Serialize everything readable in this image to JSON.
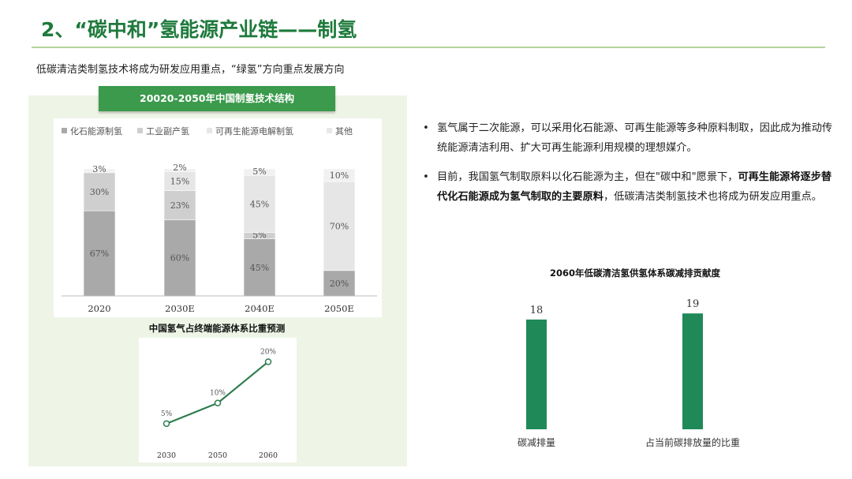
{
  "header": {
    "title": "2、“碳中和”氢能源产业链——制氢",
    "subtitle": "低碳清洁类制氢技术将成为研发应用重点，“绿氢”方向重点发展方向"
  },
  "left_card": {
    "title": "20020-2050年中国制氢技术结构"
  },
  "chart2_title": "中国氢气占终端能源体系比重预测",
  "chart3_title": "2060年低碳清洁氢供氢体系碳减排贡献度",
  "bullets": [
    {
      "dot": "•",
      "text": "氢气属于二次能源，可以采用化石能源、可再生能源等多种原料制取，因此成为推动传统能源清洁利用、扩大可再生能源利用规模的理想媒介。"
    },
    {
      "dot": "•",
      "pre": "目前，我国氢气制取原料以化石能源为主，但在\"碳中和\"愿景下，",
      "bold": "可再生能源将逐步替代化石能源成为氢气制取的主要原料",
      "post": "，低碳清洁类制氢技术也将成为研发应用重点。"
    }
  ],
  "chart_data": [
    {
      "type": "bar",
      "stacked": true,
      "title": "20020-2050年中国制氢技术结构",
      "categories": [
        "2020",
        "2030E",
        "2040E",
        "2050E"
      ],
      "series": [
        {
          "name": "化石能源制氢",
          "values": [
            67,
            60,
            45,
            20
          ],
          "labels": [
            "67%",
            "60%",
            "45%",
            "20%"
          ],
          "color": "#a9a9a9"
        },
        {
          "name": "工业副产氢",
          "values": [
            30,
            23,
            5,
            0
          ],
          "labels": [
            "30%",
            "23%",
            "5%",
            ""
          ],
          "color": "#cfcfcf"
        },
        {
          "name": "可再生能源电解制氢",
          "values": [
            0,
            15,
            45,
            70
          ],
          "labels": [
            "",
            "15%",
            "45%",
            "70%"
          ],
          "color": "#e6e6e6"
        },
        {
          "name": "其他",
          "values": [
            3,
            2,
            5,
            10
          ],
          "labels": [
            "3%",
            "2%",
            "5%",
            "10%"
          ],
          "color": "#f1f1f1"
        }
      ],
      "ylim": [
        0,
        100
      ],
      "legend": "top",
      "grid": false
    },
    {
      "type": "line",
      "title": "中国氢气占终端能源体系比重预测",
      "x": [
        "2030",
        "2050",
        "2060"
      ],
      "values": [
        5,
        10,
        20
      ],
      "labels": [
        "5%",
        "10%",
        "20%"
      ],
      "ylim": [
        0,
        22
      ],
      "color": "#2e7d4f"
    },
    {
      "type": "bar",
      "title": "2060年低碳清洁氢供氢体系碳减排贡献度",
      "categories": [
        "碳减排量",
        "占当前碳排放量的比重"
      ],
      "values": [
        18,
        19
      ],
      "labels": [
        "18",
        "19"
      ],
      "ylim": [
        0,
        22
      ],
      "color": "#1f8a57"
    }
  ]
}
